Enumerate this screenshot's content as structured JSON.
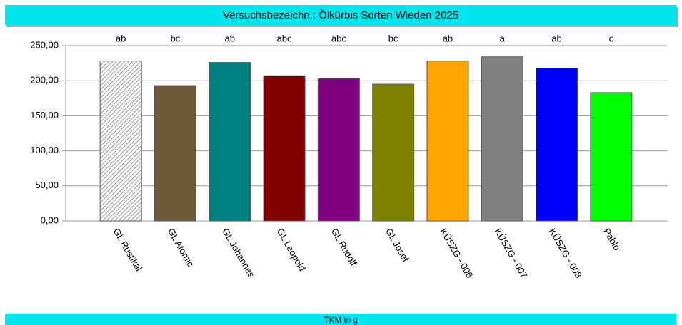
{
  "chart_data": {
    "type": "bar",
    "title": "Versuchsbezeichn.: Ölkürbis Sorten Wieden 2025",
    "y_label": "TKM in g",
    "categories": [
      "GL Rustikal",
      "GL Atomic",
      "GL Johannes",
      "GL Leopold",
      "GL Rudolf",
      "GL Josef",
      "KÜSZG - 006",
      "KÜSZG - 007",
      "KÜSZG - 008",
      "Pablo"
    ],
    "values": [
      228,
      193,
      226,
      207,
      203,
      195,
      228,
      234,
      218,
      183
    ],
    "annotations": [
      "ab",
      "bc",
      "ab",
      "abc",
      "abc",
      "bc",
      "ab",
      "a",
      "ab",
      "c"
    ],
    "colors": [
      "#d4d4d4",
      "#6e5a3a",
      "#008080",
      "#800000",
      "#800080",
      "#808000",
      "#ffa500",
      "#808080",
      "#0000ff",
      "#00ff00"
    ],
    "ylim": [
      0,
      250
    ],
    "yticks": [
      {
        "value": 0,
        "label": "0,00"
      },
      {
        "value": 50,
        "label": "50,00"
      },
      {
        "value": 100,
        "label": "100,00"
      },
      {
        "value": 150,
        "label": "150,00"
      },
      {
        "value": 200,
        "label": "200,00"
      },
      {
        "value": 250,
        "label": "250,00"
      }
    ],
    "grid": true
  }
}
